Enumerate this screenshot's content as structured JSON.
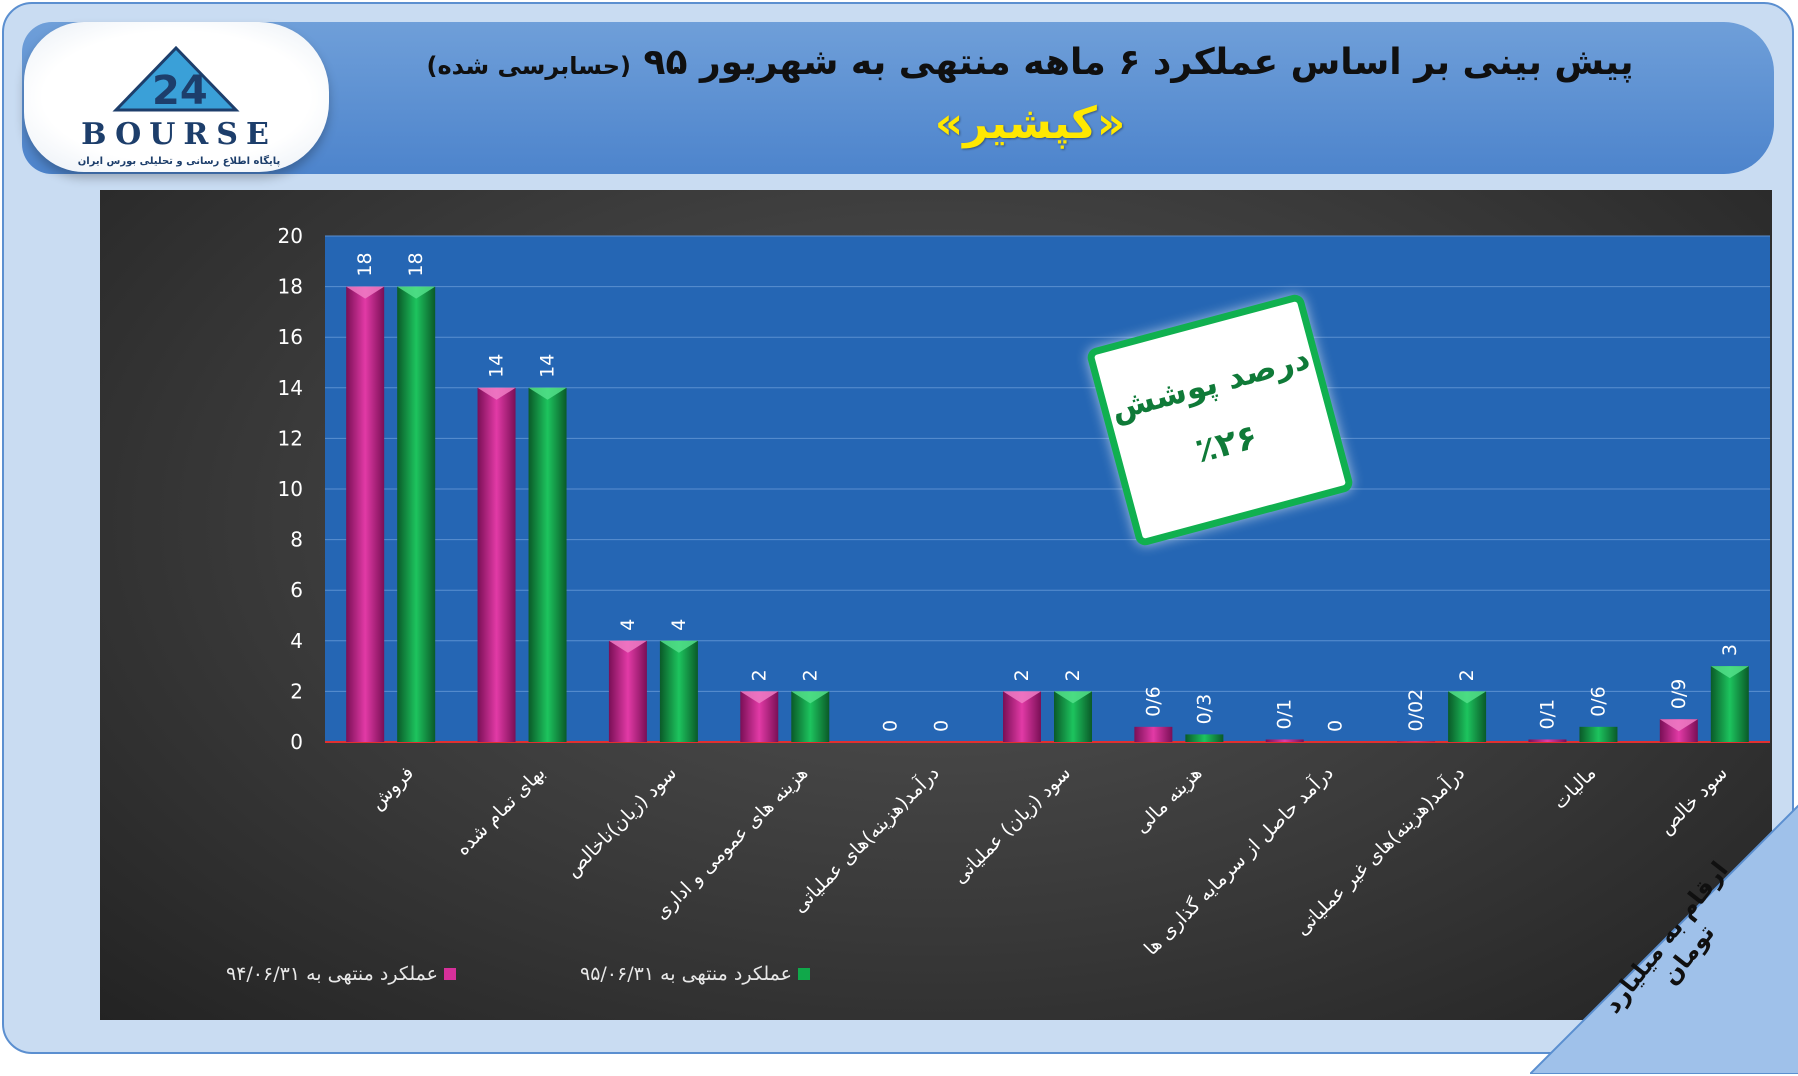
{
  "header": {
    "title_main": "پیش بینی بر اساس عملکرد ۶ ماهه منتهی به شهریور ۹۵",
    "title_sub": "(حسابرسی شده)",
    "company": "«کپشیر»"
  },
  "logo": {
    "brand": "BOURSE",
    "tagline": "پایگاه اطلاع رسانی و تحلیلی بورس ایران"
  },
  "coverage": {
    "label": "درصد پوشش",
    "value": "٪۲۶"
  },
  "unit_note": "ارقام به میلیارد تومان",
  "colors": {
    "series1": "#d6309a",
    "series2": "#10a84a",
    "plot_bg": "#2566b4",
    "grid": "#5a8fd0"
  },
  "chart_data": {
    "type": "bar",
    "categories": [
      "فروش",
      "بهای تمام شده",
      "سود (زیان)ناخالص",
      "هزینه های عمومی و اداری",
      "درآمد(هزینه)های عملیاتی",
      "سود (زیان) عملیاتی",
      "هزینه مالی",
      "درآمد حاصل از سرمایه گذاری ها",
      "درآمد(هزینه)های غیر عملیاتی",
      "مالیات",
      "سود خالص"
    ],
    "series": [
      {
        "name": "عملکرد منتهی به ۹۴/۰۶/۳۱",
        "values": [
          18,
          14,
          4,
          2,
          0,
          2,
          0.6,
          0.1,
          0.02,
          0.1,
          0.9
        ],
        "labels": [
          "18",
          "14",
          "4",
          "2",
          "0",
          "2",
          "0/6",
          "0/1",
          "0/02",
          "0/1",
          "0/9"
        ]
      },
      {
        "name": "عملکرد منتهی به ۹۵/۰۶/۳۱",
        "values": [
          18,
          14,
          4,
          2,
          0,
          2,
          0.3,
          0,
          2,
          0.6,
          3
        ],
        "labels": [
          "18",
          "14",
          "4",
          "2",
          "0",
          "2",
          "0/3",
          "0",
          "2",
          "0/6",
          "3"
        ]
      }
    ],
    "yticks": [
      "0",
      "2",
      "4",
      "6",
      "8",
      "10",
      "12",
      "14",
      "16",
      "18",
      "20"
    ],
    "ylim": [
      0,
      20
    ],
    "grid": true,
    "legend_position": "bottom"
  }
}
